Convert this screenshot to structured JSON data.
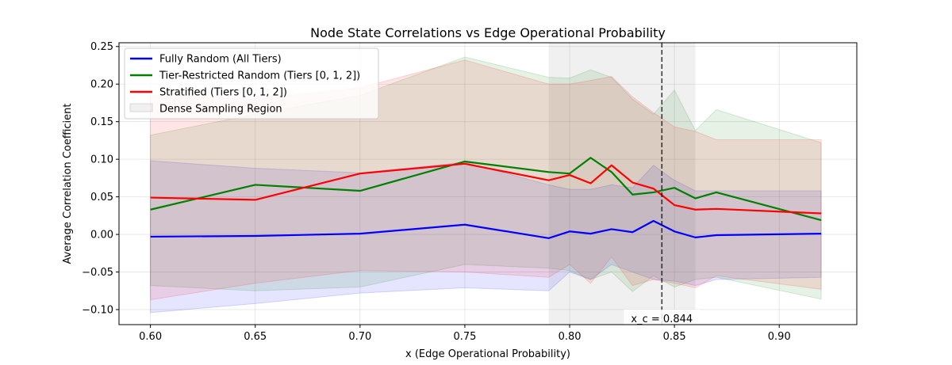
{
  "chart_data": {
    "type": "line",
    "title": "Node State Correlations vs Edge Operational Probability",
    "xlabel": "x (Edge Operational Probability)",
    "ylabel": "Average Correlation Coefficient",
    "xlim": [
      0.585,
      0.937
    ],
    "ylim": [
      -0.12,
      0.255
    ],
    "xticks": [
      0.6,
      0.65,
      0.7,
      0.75,
      0.8,
      0.85,
      0.9
    ],
    "xtick_labels": [
      "0.60",
      "0.65",
      "0.70",
      "0.75",
      "0.80",
      "0.85",
      "0.90"
    ],
    "yticks": [
      -0.1,
      -0.05,
      0.0,
      0.05,
      0.1,
      0.15,
      0.2,
      0.25
    ],
    "ytick_labels": [
      "−0.10",
      "−0.05",
      "0.00",
      "0.05",
      "0.10",
      "0.15",
      "0.20",
      "0.25"
    ],
    "grid": true,
    "legend_position": "top-left",
    "x": [
      0.6,
      0.65,
      0.7,
      0.75,
      0.79,
      0.8,
      0.81,
      0.82,
      0.83,
      0.84,
      0.85,
      0.86,
      0.87,
      0.92
    ],
    "series": [
      {
        "name": "Fully Random (All Tiers)",
        "color": "#0000ff",
        "values": [
          -0.003,
          -0.002,
          0.001,
          0.013,
          -0.005,
          0.004,
          0.001,
          0.007,
          0.003,
          0.018,
          0.004,
          -0.004,
          -0.001,
          0.001
        ],
        "lower": [
          -0.104,
          -0.092,
          -0.078,
          -0.071,
          -0.075,
          -0.05,
          -0.06,
          -0.04,
          -0.05,
          -0.06,
          -0.062,
          -0.068,
          -0.06,
          -0.057
        ],
        "upper": [
          0.098,
          0.088,
          0.082,
          0.096,
          0.066,
          0.06,
          0.06,
          0.066,
          0.062,
          0.092,
          0.072,
          0.058,
          0.058,
          0.058
        ]
      },
      {
        "name": "Tier-Restricted Random (Tiers [0, 1, 2])",
        "color": "#008000",
        "values": [
          0.033,
          0.066,
          0.058,
          0.097,
          0.083,
          0.081,
          0.102,
          0.083,
          0.053,
          0.056,
          0.062,
          0.048,
          0.056,
          0.019
        ],
        "lower": [
          -0.068,
          -0.075,
          -0.07,
          -0.04,
          -0.045,
          -0.048,
          -0.06,
          -0.05,
          -0.076,
          -0.055,
          -0.07,
          -0.06,
          -0.057,
          -0.086
        ],
        "upper": [
          0.132,
          0.16,
          0.185,
          0.236,
          0.209,
          0.208,
          0.219,
          0.209,
          0.18,
          0.16,
          0.192,
          0.138,
          0.166,
          0.122
        ]
      },
      {
        "name": "Stratified (Tiers [0, 1, 2])",
        "color": "#ff0000",
        "values": [
          0.049,
          0.046,
          0.081,
          0.094,
          0.072,
          0.079,
          0.068,
          0.092,
          0.069,
          0.061,
          0.039,
          0.033,
          0.034,
          0.028
        ],
        "lower": [
          -0.087,
          -0.065,
          -0.048,
          -0.05,
          -0.057,
          -0.04,
          -0.065,
          -0.03,
          -0.068,
          -0.06,
          -0.065,
          -0.071,
          -0.055,
          -0.073
        ],
        "upper": [
          0.185,
          0.18,
          0.195,
          0.232,
          0.2,
          0.2,
          0.205,
          0.21,
          0.183,
          0.162,
          0.143,
          0.137,
          0.126,
          0.126
        ]
      }
    ],
    "dense_region": {
      "name": "Dense Sampling Region",
      "x0": 0.79,
      "x1": 0.86,
      "color": "#808080"
    },
    "critical_line": {
      "x": 0.844,
      "label": "x_c = 0.844"
    }
  }
}
